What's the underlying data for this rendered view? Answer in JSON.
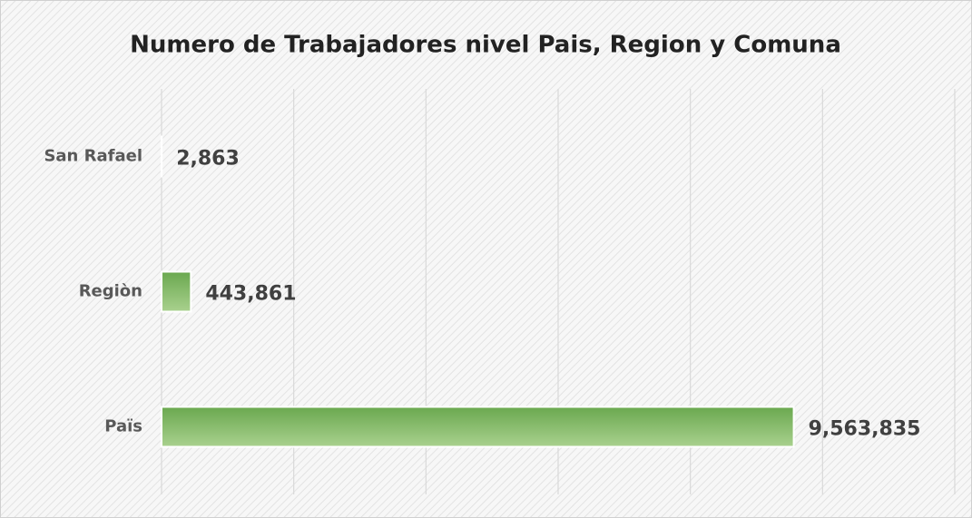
{
  "chart_data": {
    "type": "barh",
    "title": "Numero de Trabajadores nivel Pais, Region y Comuna",
    "categories": [
      "San Rafael",
      "Regiòn",
      "Païs"
    ],
    "values": [
      2863,
      443861,
      9563835
    ],
    "value_labels": [
      "2,863",
      "443,861",
      "9,563,835"
    ],
    "color": [
      "#6aa84f",
      "#a9d18e"
    ],
    "xlim": [
      0,
      12000000
    ],
    "xticks": [
      0,
      2000000,
      4000000,
      6000000,
      8000000,
      10000000,
      12000000
    ],
    "grid": true
  }
}
